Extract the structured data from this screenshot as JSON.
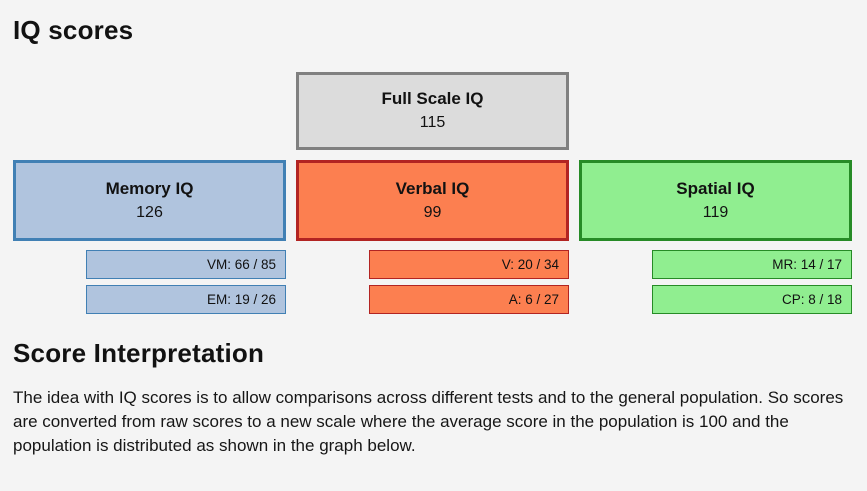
{
  "page": {
    "title": "IQ scores",
    "section_title": "Score Interpretation",
    "interpretation_text": "The idea with IQ scores is to allow comparisons across different tests and to the general population. So scores are converted from raw scores to a new scale where the average score in the population is 100 and the population is distributed as shown in the graph below."
  },
  "full_scale": {
    "label": "Full Scale IQ",
    "score": "115",
    "fill": "#dcdcdc",
    "border": "#808080"
  },
  "domains": [
    {
      "label": "Memory IQ",
      "score": "126",
      "fill": "#b0c4de",
      "border": "#407cb2",
      "border_color": "#4180b4",
      "subtests": [
        {
          "label": "VM: 66 / 85"
        },
        {
          "label": "EM: 19 / 26"
        }
      ]
    },
    {
      "label": "Verbal IQ",
      "score": "99",
      "fill": "#fc7f50",
      "border_color": "#b22422",
      "subtests": [
        {
          "label": "V: 20 / 34"
        },
        {
          "label": "A: 6 / 27"
        }
      ]
    },
    {
      "label": "Spatial IQ",
      "score": "119",
      "fill": "#90ee90",
      "border_color": "#268b26",
      "subtests": [
        {
          "label": "MR: 14 / 17"
        },
        {
          "label": "CP: 8 / 18"
        }
      ]
    }
  ]
}
